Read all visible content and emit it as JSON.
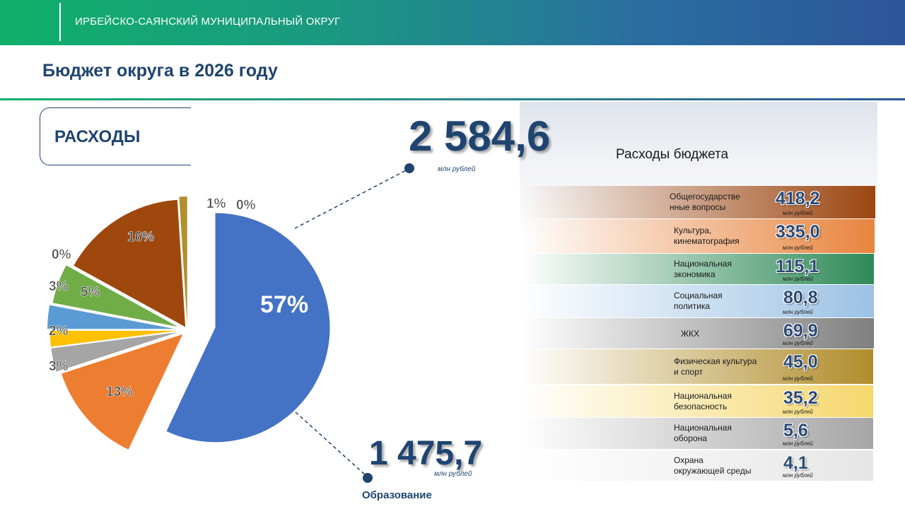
{
  "header": {
    "title": "ИРБЕЙСКО-САЯНСКИЙ МУНИЦИПАЛЬНЫЙ ОКРУГ"
  },
  "page": {
    "title": "Бюджет округа в 2026 году"
  },
  "section": {
    "label": "РАСХОДЫ"
  },
  "total": {
    "value": "2 584,6",
    "unit": "млн рублей"
  },
  "highlight": {
    "value": "1 475,7",
    "unit": "млн рублей",
    "label": "Образование"
  },
  "panel": {
    "title": "Расходы бюджета"
  },
  "chart_data": [
    {
      "type": "pie",
      "title": "",
      "slices": [
        {
          "label": "57%",
          "value": 57,
          "color": "#4472c4"
        },
        {
          "label": "13%",
          "value": 13,
          "color": "#ed7d31"
        },
        {
          "label": "3%",
          "value": 3,
          "color": "#a5a5a5"
        },
        {
          "label": "2%",
          "value": 2,
          "color": "#ffc000"
        },
        {
          "label": "3%",
          "value": 3,
          "color": "#5b9bd5"
        },
        {
          "label": "5%",
          "value": 5,
          "color": "#70ad47"
        },
        {
          "label": "0%",
          "value": 0,
          "color": "#264478"
        },
        {
          "label": "16%",
          "value": 16,
          "color": "#9e480e"
        },
        {
          "label": "1%",
          "value": 1,
          "color": "#b0902e"
        },
        {
          "label": "0%",
          "value": 0,
          "color": "#636363"
        }
      ]
    },
    {
      "type": "bar",
      "title": "Расходы бюджета",
      "unit": "млн рублей",
      "categories": [
        "Общегосударстве нные вопросы",
        "Культура, кинематография",
        "Национальная экономика",
        "Социальная политика",
        "ЖКХ",
        "Физическая культура и спорт",
        "Национальная безопасность",
        "Национальная оборона",
        "Охрана окружающей среды"
      ],
      "labels_display": [
        [
          "Общегосударстве",
          "нные вопросы"
        ],
        [
          "Культура,",
          "кинематография"
        ],
        [
          "Национальная",
          "экономика"
        ],
        [
          "Социальная",
          "политика"
        ],
        [
          "ЖКХ"
        ],
        [
          "Физическая культура",
          " и спорт"
        ],
        [
          "Национальная",
          "безопасность"
        ],
        [
          "Национальная",
          "оборона"
        ],
        [
          "Охрана",
          "окружающей среды"
        ]
      ],
      "values": [
        418.2,
        335.0,
        115.1,
        80.8,
        69.9,
        45.0,
        35.2,
        5.6,
        4.1
      ],
      "values_display": [
        "418,2",
        "335,0",
        "115,1",
        "80,8",
        "69,9",
        "45,0",
        "35,2",
        "5,6",
        "4,1"
      ],
      "colors": [
        "#9c4611",
        "#e8843e",
        "#2f8a58",
        "#9cc2e4",
        "#7f7f7f",
        "#b08d2c",
        "#f6d76c",
        "#a6a6a6",
        "#e6e6e6"
      ]
    }
  ]
}
